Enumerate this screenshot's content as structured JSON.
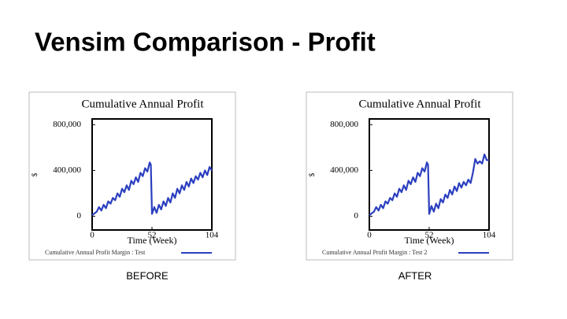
{
  "title": "Vensim Comparison - Profit",
  "chart_data": [
    {
      "type": "line",
      "title": "Cumulative Annual Profit",
      "ylabel": "$",
      "xlabel": "Time (Week)",
      "caption": "BEFORE",
      "xlim": [
        0,
        104
      ],
      "xticks": [
        0,
        52,
        104
      ],
      "ylim": [
        -120000,
        850000
      ],
      "yticks": [
        0,
        {
          "value": 400000,
          "label": "400,000"
        },
        {
          "value": 800000,
          "label": "800,000"
        }
      ],
      "x": [
        0,
        4,
        6,
        8,
        10,
        12,
        14,
        16,
        18,
        20,
        22,
        24,
        26,
        28,
        30,
        32,
        34,
        36,
        38,
        40,
        42,
        44,
        46,
        48,
        50,
        51,
        52,
        54,
        56,
        58,
        60,
        62,
        64,
        66,
        68,
        70,
        72,
        74,
        76,
        78,
        80,
        82,
        84,
        86,
        88,
        90,
        92,
        94,
        96,
        98,
        100,
        102,
        104
      ],
      "series": [
        {
          "name": "Cumulative Annual Profit Margin : Test",
          "color": "#2b3fbf",
          "values": [
            10000,
            40000,
            80000,
            50000,
            100000,
            70000,
            130000,
            110000,
            160000,
            140000,
            200000,
            170000,
            240000,
            210000,
            270000,
            230000,
            310000,
            280000,
            340000,
            300000,
            380000,
            350000,
            420000,
            390000,
            470000,
            450000,
            20000,
            80000,
            30000,
            100000,
            60000,
            130000,
            90000,
            160000,
            120000,
            200000,
            160000,
            240000,
            200000,
            270000,
            230000,
            300000,
            260000,
            330000,
            290000,
            350000,
            320000,
            380000,
            340000,
            400000,
            360000,
            430000,
            400000
          ]
        }
      ]
    },
    {
      "type": "line",
      "title": "Cumulative Annual Profit",
      "ylabel": "$",
      "xlabel": "Time (Week)",
      "caption": "AFTER",
      "xlim": [
        0,
        104
      ],
      "xticks": [
        0,
        52,
        104
      ],
      "ylim": [
        -120000,
        850000
      ],
      "yticks": [
        0,
        {
          "value": 400000,
          "label": "400,000"
        },
        {
          "value": 800000,
          "label": "800,000"
        }
      ],
      "x": [
        0,
        4,
        6,
        8,
        10,
        12,
        14,
        16,
        18,
        20,
        22,
        24,
        26,
        28,
        30,
        32,
        34,
        36,
        38,
        40,
        42,
        44,
        46,
        48,
        50,
        51,
        52,
        54,
        56,
        58,
        60,
        62,
        64,
        66,
        68,
        70,
        72,
        74,
        76,
        78,
        80,
        82,
        84,
        86,
        88,
        90,
        92,
        94,
        96,
        98,
        100,
        102,
        104
      ],
      "series": [
        {
          "name": "Cumulative Annual Profit Margin : Test 2",
          "color": "#2b3fbf",
          "values": [
            10000,
            40000,
            80000,
            50000,
            100000,
            70000,
            130000,
            110000,
            160000,
            140000,
            200000,
            170000,
            240000,
            210000,
            270000,
            230000,
            310000,
            280000,
            340000,
            300000,
            380000,
            350000,
            420000,
            390000,
            470000,
            450000,
            20000,
            90000,
            40000,
            110000,
            70000,
            150000,
            120000,
            190000,
            160000,
            230000,
            190000,
            260000,
            220000,
            290000,
            250000,
            300000,
            270000,
            320000,
            290000,
            380000,
            500000,
            460000,
            480000,
            460000,
            540000,
            490000,
            490000
          ]
        }
      ]
    }
  ]
}
